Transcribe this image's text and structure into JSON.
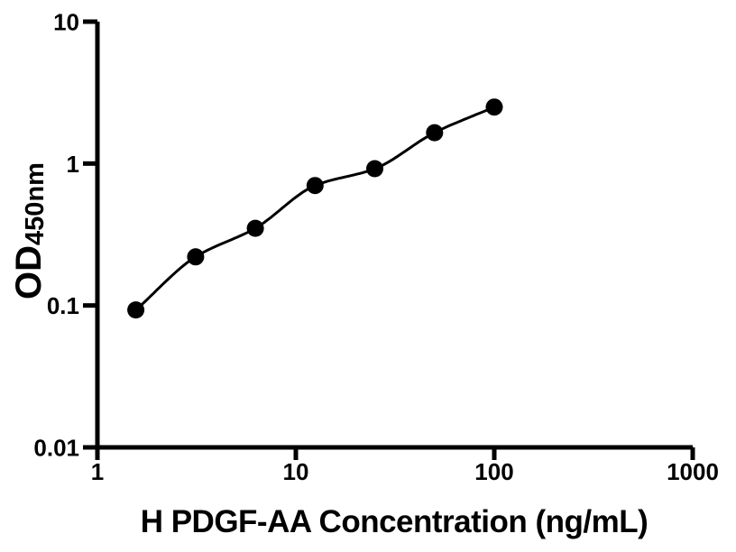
{
  "figure": {
    "background_color": "#ffffff",
    "axis_color": "#000000"
  },
  "chart_data": {
    "type": "scatter",
    "title": "",
    "xlabel": "H PDGF-AA Concentration (ng/mL)",
    "ylabel": "OD",
    "ylabel_subscript": "450nm",
    "x_scale": "log",
    "y_scale": "log",
    "xlim": [
      1,
      1000
    ],
    "ylim": [
      0.01,
      10
    ],
    "x_tick_values": [
      1,
      10,
      100,
      1000
    ],
    "x_tick_labels": [
      "1",
      "10",
      "100",
      "1000"
    ],
    "y_tick_values": [
      0.01,
      0.1,
      1,
      10
    ],
    "y_tick_labels": [
      "0.01",
      "0.1",
      "1",
      "10"
    ],
    "x": [
      1.5625,
      3.125,
      6.25,
      12.5,
      25,
      50,
      100
    ],
    "y": [
      0.093,
      0.22,
      0.35,
      0.7,
      0.92,
      1.65,
      2.5
    ],
    "marker_color": "#000000",
    "marker_radius": 9.5,
    "line_color": "#000000",
    "line_width": 3,
    "grid": false,
    "legend_position": "none",
    "curve_type": "smooth-fit-through-points"
  }
}
